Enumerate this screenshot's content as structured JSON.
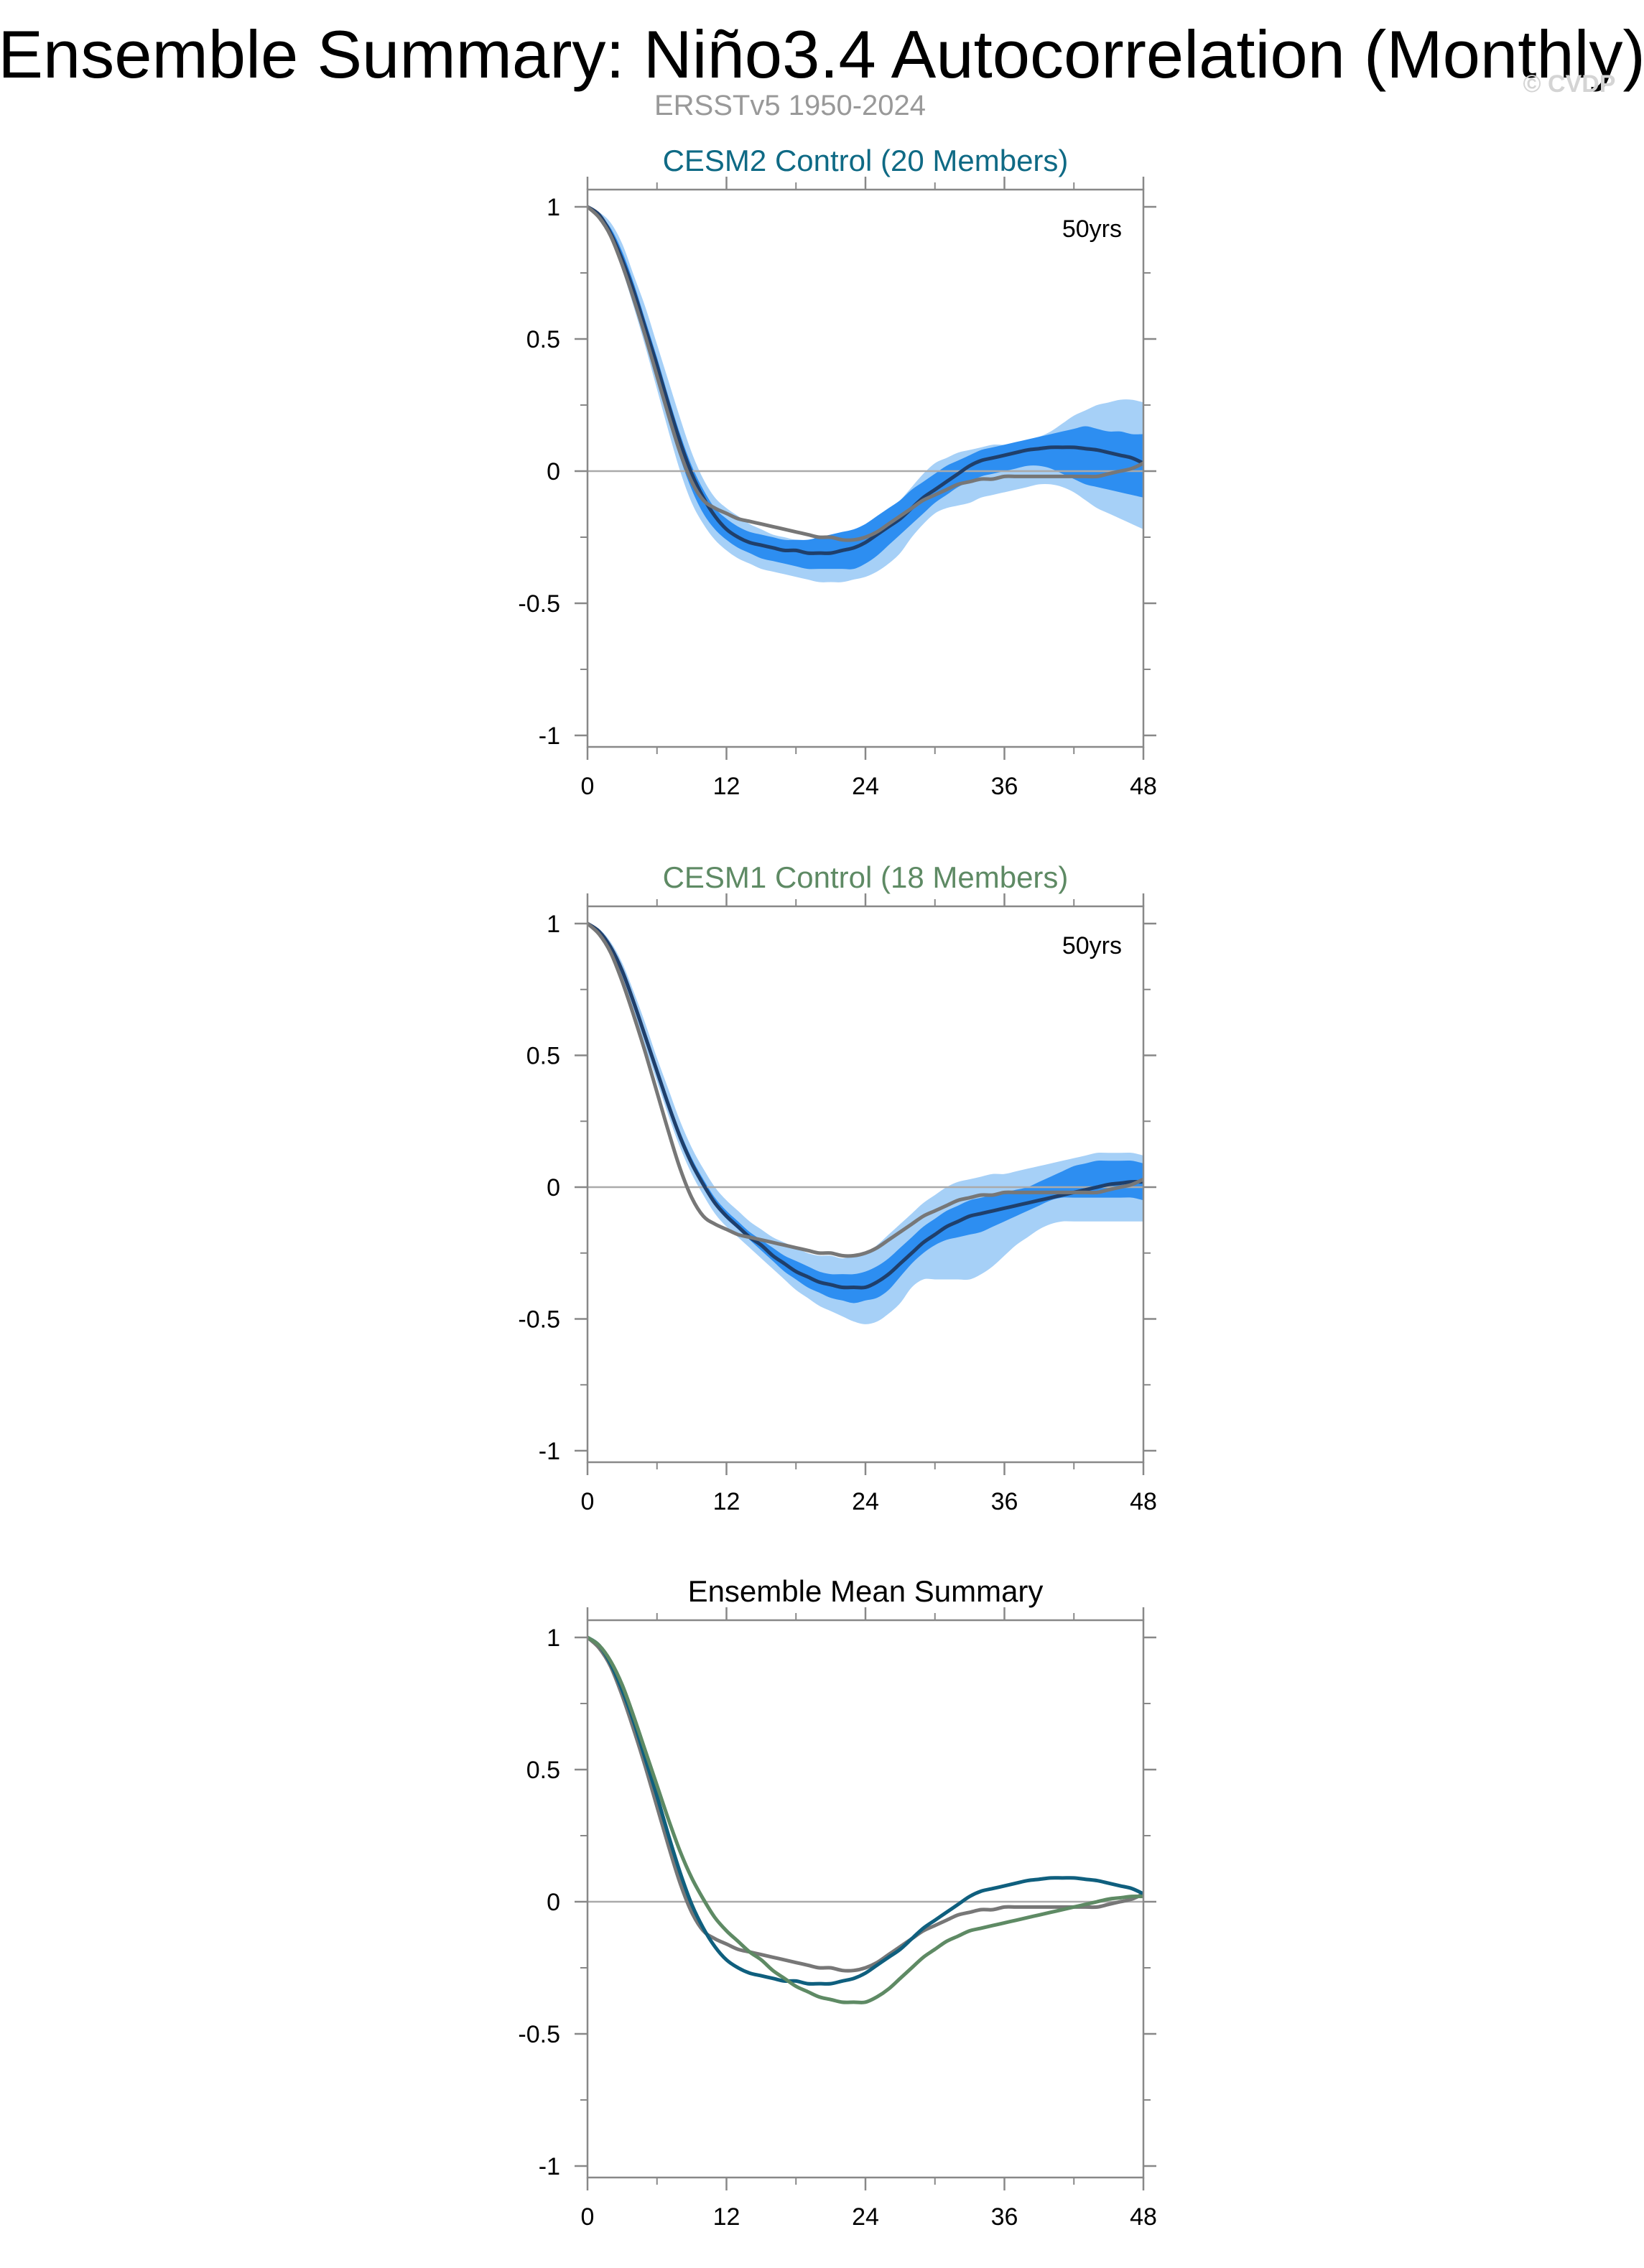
{
  "title": "Ensemble Summary: Niño3.4 Autocorrelation (Monthly)",
  "subtitle": "ERSST​v5 1950-2024",
  "watermark": "© CVDP",
  "colors": {
    "observations": "#777777",
    "cesm2_mean": "#0f5f7e",
    "cesm1_mean": "#5e8a64",
    "spread_inner": "#2d8ef1",
    "spread_outer": "#a6d0f7",
    "panel_mean_line": "#1f3f6b",
    "zero_line": "#aaaaaa",
    "axis": "#888888"
  },
  "chart_data": [
    {
      "type": "area",
      "title": "CESM2 Control (20 Members)",
      "title_color": "#0f6a85",
      "annotation": "50yrs",
      "xlabel": "",
      "ylabel": "",
      "xlim": [
        0,
        48
      ],
      "ylim": [
        -1,
        1
      ],
      "xticks": [
        0,
        12,
        24,
        36,
        48
      ],
      "yticks": [
        1,
        0.5,
        0,
        -0.5,
        -1
      ],
      "ytick_labels": [
        "1",
        "0.5",
        "0",
        "-0.5",
        "-1"
      ],
      "x": [
        0,
        1,
        2,
        3,
        4,
        5,
        6,
        7,
        8,
        9,
        10,
        11,
        12,
        13,
        14,
        15,
        16,
        17,
        18,
        19,
        20,
        21,
        22,
        23,
        24,
        25,
        26,
        27,
        28,
        29,
        30,
        31,
        32,
        33,
        34,
        35,
        36,
        37,
        38,
        39,
        40,
        41,
        42,
        43,
        44,
        45,
        46,
        47,
        48
      ],
      "band_outer": {
        "lower": [
          1.0,
          0.96,
          0.88,
          0.76,
          0.62,
          0.47,
          0.31,
          0.15,
          0.0,
          -0.12,
          -0.2,
          -0.26,
          -0.3,
          -0.33,
          -0.35,
          -0.37,
          -0.38,
          -0.39,
          -0.4,
          -0.41,
          -0.42,
          -0.42,
          -0.42,
          -0.41,
          -0.4,
          -0.38,
          -0.35,
          -0.31,
          -0.25,
          -0.2,
          -0.16,
          -0.14,
          -0.13,
          -0.12,
          -0.1,
          -0.09,
          -0.08,
          -0.07,
          -0.06,
          -0.05,
          -0.05,
          -0.06,
          -0.08,
          -0.11,
          -0.14,
          -0.16,
          -0.18,
          -0.2,
          -0.22
        ],
        "upper": [
          1.0,
          0.98,
          0.94,
          0.86,
          0.74,
          0.62,
          0.48,
          0.34,
          0.2,
          0.07,
          -0.03,
          -0.1,
          -0.14,
          -0.17,
          -0.2,
          -0.22,
          -0.24,
          -0.25,
          -0.26,
          -0.26,
          -0.26,
          -0.26,
          -0.25,
          -0.24,
          -0.22,
          -0.19,
          -0.15,
          -0.11,
          -0.06,
          -0.01,
          0.03,
          0.05,
          0.07,
          0.08,
          0.09,
          0.1,
          0.1,
          0.11,
          0.12,
          0.13,
          0.15,
          0.18,
          0.21,
          0.23,
          0.25,
          0.26,
          0.27,
          0.27,
          0.26
        ]
      },
      "band_inner": {
        "lower": [
          1.0,
          0.97,
          0.89,
          0.78,
          0.64,
          0.5,
          0.35,
          0.2,
          0.05,
          -0.07,
          -0.16,
          -0.22,
          -0.26,
          -0.29,
          -0.31,
          -0.33,
          -0.34,
          -0.35,
          -0.36,
          -0.37,
          -0.37,
          -0.37,
          -0.37,
          -0.37,
          -0.35,
          -0.32,
          -0.28,
          -0.24,
          -0.2,
          -0.16,
          -0.12,
          -0.09,
          -0.06,
          -0.04,
          -0.02,
          -0.01,
          0.0,
          0.01,
          0.02,
          0.02,
          0.01,
          -0.01,
          -0.03,
          -0.05,
          -0.06,
          -0.07,
          -0.08,
          -0.09,
          -0.1
        ],
        "upper": [
          1.0,
          0.97,
          0.92,
          0.83,
          0.71,
          0.57,
          0.43,
          0.28,
          0.14,
          0.02,
          -0.07,
          -0.14,
          -0.18,
          -0.21,
          -0.23,
          -0.24,
          -0.25,
          -0.26,
          -0.26,
          -0.26,
          -0.25,
          -0.24,
          -0.23,
          -0.22,
          -0.2,
          -0.17,
          -0.14,
          -0.11,
          -0.07,
          -0.04,
          -0.01,
          0.02,
          0.04,
          0.06,
          0.08,
          0.09,
          0.1,
          0.11,
          0.12,
          0.13,
          0.14,
          0.15,
          0.16,
          0.17,
          0.16,
          0.15,
          0.15,
          0.14,
          0.14
        ]
      },
      "series": [
        {
          "name": "",
          "role": "ensemble-mean",
          "values": [
            1.0,
            0.97,
            0.9,
            0.8,
            0.68,
            0.54,
            0.4,
            0.25,
            0.11,
            -0.01,
            -0.1,
            -0.17,
            -0.22,
            -0.25,
            -0.27,
            -0.28,
            -0.29,
            -0.3,
            -0.3,
            -0.31,
            -0.31,
            -0.31,
            -0.3,
            -0.29,
            -0.27,
            -0.24,
            -0.21,
            -0.18,
            -0.14,
            -0.1,
            -0.07,
            -0.04,
            -0.01,
            0.02,
            0.04,
            0.05,
            0.06,
            0.07,
            0.08,
            0.085,
            0.09,
            0.09,
            0.09,
            0.085,
            0.08,
            0.07,
            0.06,
            0.05,
            0.03
          ]
        },
        {
          "name": "",
          "role": "observations",
          "values": [
            1.0,
            0.96,
            0.89,
            0.78,
            0.65,
            0.51,
            0.36,
            0.21,
            0.07,
            -0.04,
            -0.11,
            -0.14,
            -0.16,
            -0.18,
            -0.19,
            -0.2,
            -0.21,
            -0.22,
            -0.23,
            -0.24,
            -0.25,
            -0.25,
            -0.26,
            -0.26,
            -0.25,
            -0.23,
            -0.2,
            -0.17,
            -0.14,
            -0.11,
            -0.09,
            -0.07,
            -0.05,
            -0.04,
            -0.03,
            -0.03,
            -0.02,
            -0.02,
            -0.02,
            -0.02,
            -0.02,
            -0.02,
            -0.02,
            -0.02,
            -0.02,
            -0.01,
            0.0,
            0.01,
            0.03
          ]
        }
      ]
    },
    {
      "type": "area",
      "title": "CESM1 Control (18 Members)",
      "title_color": "#5e8a64",
      "annotation": "50yrs",
      "xlabel": "",
      "ylabel": "",
      "xlim": [
        0,
        48
      ],
      "ylim": [
        -1,
        1
      ],
      "xticks": [
        0,
        12,
        24,
        36,
        48
      ],
      "yticks": [
        1,
        0.5,
        0,
        -0.5,
        -1
      ],
      "ytick_labels": [
        "1",
        "0.5",
        "0",
        "-0.5",
        "-1"
      ],
      "x": [
        0,
        1,
        2,
        3,
        4,
        5,
        6,
        7,
        8,
        9,
        10,
        11,
        12,
        13,
        14,
        15,
        16,
        17,
        18,
        19,
        20,
        21,
        22,
        23,
        24,
        25,
        26,
        27,
        28,
        29,
        30,
        31,
        32,
        33,
        34,
        35,
        36,
        37,
        38,
        39,
        40,
        41,
        42,
        43,
        44,
        45,
        46,
        47,
        48
      ],
      "band_outer": {
        "lower": [
          1.0,
          0.96,
          0.89,
          0.79,
          0.66,
          0.53,
          0.4,
          0.27,
          0.15,
          0.05,
          -0.03,
          -0.1,
          -0.15,
          -0.19,
          -0.23,
          -0.27,
          -0.31,
          -0.35,
          -0.39,
          -0.42,
          -0.45,
          -0.47,
          -0.49,
          -0.51,
          -0.52,
          -0.51,
          -0.48,
          -0.44,
          -0.38,
          -0.35,
          -0.35,
          -0.35,
          -0.35,
          -0.35,
          -0.33,
          -0.3,
          -0.26,
          -0.22,
          -0.19,
          -0.16,
          -0.14,
          -0.13,
          -0.13,
          -0.13,
          -0.13,
          -0.13,
          -0.13,
          -0.13,
          -0.13
        ],
        "upper": [
          1.0,
          0.98,
          0.93,
          0.85,
          0.74,
          0.62,
          0.49,
          0.37,
          0.25,
          0.15,
          0.07,
          0.0,
          -0.05,
          -0.09,
          -0.13,
          -0.16,
          -0.19,
          -0.21,
          -0.23,
          -0.25,
          -0.26,
          -0.26,
          -0.27,
          -0.26,
          -0.25,
          -0.22,
          -0.18,
          -0.14,
          -0.1,
          -0.06,
          -0.03,
          0.0,
          0.02,
          0.03,
          0.04,
          0.05,
          0.05,
          0.06,
          0.07,
          0.08,
          0.09,
          0.1,
          0.11,
          0.12,
          0.13,
          0.13,
          0.13,
          0.13,
          0.12
        ]
      },
      "band_inner": {
        "lower": [
          1.0,
          0.97,
          0.91,
          0.81,
          0.69,
          0.56,
          0.43,
          0.3,
          0.18,
          0.08,
          0.0,
          -0.07,
          -0.12,
          -0.16,
          -0.2,
          -0.24,
          -0.28,
          -0.32,
          -0.35,
          -0.38,
          -0.4,
          -0.42,
          -0.43,
          -0.44,
          -0.43,
          -0.42,
          -0.39,
          -0.34,
          -0.29,
          -0.25,
          -0.22,
          -0.2,
          -0.19,
          -0.18,
          -0.17,
          -0.15,
          -0.13,
          -0.11,
          -0.09,
          -0.07,
          -0.05,
          -0.04,
          -0.04,
          -0.04,
          -0.04,
          -0.04,
          -0.04,
          -0.04,
          -0.05
        ],
        "upper": [
          1.0,
          0.97,
          0.92,
          0.83,
          0.71,
          0.59,
          0.46,
          0.33,
          0.21,
          0.11,
          0.03,
          -0.04,
          -0.09,
          -0.13,
          -0.17,
          -0.2,
          -0.23,
          -0.26,
          -0.28,
          -0.3,
          -0.32,
          -0.33,
          -0.33,
          -0.33,
          -0.32,
          -0.3,
          -0.27,
          -0.23,
          -0.19,
          -0.15,
          -0.12,
          -0.09,
          -0.07,
          -0.05,
          -0.04,
          -0.03,
          -0.02,
          -0.01,
          0.0,
          0.02,
          0.04,
          0.06,
          0.08,
          0.09,
          0.1,
          0.1,
          0.1,
          0.1,
          0.09
        ]
      },
      "series": [
        {
          "name": "",
          "role": "ensemble-mean",
          "values": [
            1.0,
            0.97,
            0.91,
            0.82,
            0.7,
            0.57,
            0.44,
            0.31,
            0.19,
            0.09,
            0.01,
            -0.06,
            -0.11,
            -0.15,
            -0.19,
            -0.22,
            -0.26,
            -0.29,
            -0.32,
            -0.34,
            -0.36,
            -0.37,
            -0.38,
            -0.38,
            -0.38,
            -0.36,
            -0.33,
            -0.29,
            -0.25,
            -0.21,
            -0.18,
            -0.15,
            -0.13,
            -0.11,
            -0.1,
            -0.09,
            -0.08,
            -0.07,
            -0.06,
            -0.05,
            -0.04,
            -0.03,
            -0.02,
            -0.01,
            0.0,
            0.01,
            0.015,
            0.02,
            0.02
          ]
        },
        {
          "name": "",
          "role": "observations",
          "values": [
            1.0,
            0.96,
            0.89,
            0.78,
            0.65,
            0.51,
            0.36,
            0.21,
            0.07,
            -0.04,
            -0.11,
            -0.14,
            -0.16,
            -0.18,
            -0.19,
            -0.2,
            -0.21,
            -0.22,
            -0.23,
            -0.24,
            -0.25,
            -0.25,
            -0.26,
            -0.26,
            -0.25,
            -0.23,
            -0.2,
            -0.17,
            -0.14,
            -0.11,
            -0.09,
            -0.07,
            -0.05,
            -0.04,
            -0.03,
            -0.03,
            -0.02,
            -0.02,
            -0.02,
            -0.02,
            -0.02,
            -0.02,
            -0.02,
            -0.02,
            -0.02,
            -0.01,
            0.0,
            0.01,
            0.03
          ]
        }
      ]
    },
    {
      "type": "line",
      "title": "Ensemble Mean Summary",
      "title_color": "#000000",
      "annotation": "",
      "xlabel": "",
      "ylabel": "",
      "xlim": [
        0,
        48
      ],
      "ylim": [
        -1,
        1
      ],
      "xticks": [
        0,
        12,
        24,
        36,
        48
      ],
      "yticks": [
        1,
        0.5,
        0,
        -0.5,
        -1
      ],
      "ytick_labels": [
        "1",
        "0.5",
        "0",
        "-0.5",
        "-1"
      ],
      "x": [
        0,
        1,
        2,
        3,
        4,
        5,
        6,
        7,
        8,
        9,
        10,
        11,
        12,
        13,
        14,
        15,
        16,
        17,
        18,
        19,
        20,
        21,
        22,
        23,
        24,
        25,
        26,
        27,
        28,
        29,
        30,
        31,
        32,
        33,
        34,
        35,
        36,
        37,
        38,
        39,
        40,
        41,
        42,
        43,
        44,
        45,
        46,
        47,
        48
      ],
      "series": [
        {
          "name": "",
          "role": "observations",
          "values": [
            1.0,
            0.96,
            0.89,
            0.78,
            0.65,
            0.51,
            0.36,
            0.21,
            0.07,
            -0.04,
            -0.11,
            -0.14,
            -0.16,
            -0.18,
            -0.19,
            -0.2,
            -0.21,
            -0.22,
            -0.23,
            -0.24,
            -0.25,
            -0.25,
            -0.26,
            -0.26,
            -0.25,
            -0.23,
            -0.2,
            -0.17,
            -0.14,
            -0.11,
            -0.09,
            -0.07,
            -0.05,
            -0.04,
            -0.03,
            -0.03,
            -0.02,
            -0.02,
            -0.02,
            -0.02,
            -0.02,
            -0.02,
            -0.02,
            -0.02,
            -0.02,
            -0.01,
            0.0,
            0.01,
            0.03
          ]
        },
        {
          "name": "",
          "role": "cesm2-mean",
          "values": [
            1.0,
            0.97,
            0.9,
            0.8,
            0.68,
            0.54,
            0.4,
            0.25,
            0.11,
            -0.01,
            -0.1,
            -0.17,
            -0.22,
            -0.25,
            -0.27,
            -0.28,
            -0.29,
            -0.3,
            -0.3,
            -0.31,
            -0.31,
            -0.31,
            -0.3,
            -0.29,
            -0.27,
            -0.24,
            -0.21,
            -0.18,
            -0.14,
            -0.1,
            -0.07,
            -0.04,
            -0.01,
            0.02,
            0.04,
            0.05,
            0.06,
            0.07,
            0.08,
            0.085,
            0.09,
            0.09,
            0.09,
            0.085,
            0.08,
            0.07,
            0.06,
            0.05,
            0.03
          ]
        },
        {
          "name": "",
          "role": "cesm1-mean",
          "values": [
            1.0,
            0.97,
            0.91,
            0.82,
            0.7,
            0.57,
            0.44,
            0.31,
            0.19,
            0.09,
            0.01,
            -0.06,
            -0.11,
            -0.15,
            -0.19,
            -0.22,
            -0.26,
            -0.29,
            -0.32,
            -0.34,
            -0.36,
            -0.37,
            -0.38,
            -0.38,
            -0.38,
            -0.36,
            -0.33,
            -0.29,
            -0.25,
            -0.21,
            -0.18,
            -0.15,
            -0.13,
            -0.11,
            -0.1,
            -0.09,
            -0.08,
            -0.07,
            -0.06,
            -0.05,
            -0.04,
            -0.03,
            -0.02,
            -0.01,
            0.0,
            0.01,
            0.015,
            0.02,
            0.02
          ]
        }
      ]
    }
  ]
}
